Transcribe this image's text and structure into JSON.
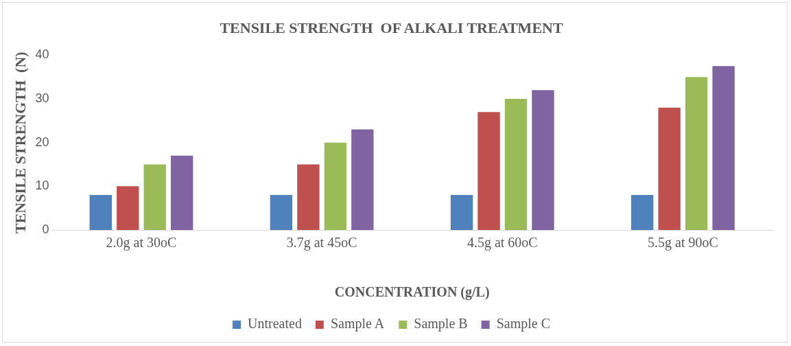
{
  "chart_data": {
    "type": "bar",
    "title": "TENSILE STRENGTH  OF ALKALI TREATMENT",
    "xlabel": "CONCENTRATION (g/L)",
    "ylabel": "TENSILE STRENGTH  (N)",
    "categories": [
      "2.0g at 30oC",
      "3.7g at 45oC",
      "4.5g at 60oC",
      "5.5g at 90oC"
    ],
    "series": [
      {
        "name": "Untreated",
        "color": "#4f81bd",
        "values": [
          8,
          8,
          8,
          8
        ]
      },
      {
        "name": "Sample A",
        "color": "#c0504d",
        "values": [
          10,
          15,
          27,
          28
        ]
      },
      {
        "name": "Sample B",
        "color": "#9bbb59",
        "values": [
          15,
          20,
          30,
          35
        ]
      },
      {
        "name": "Sample C",
        "color": "#8064a2",
        "values": [
          17,
          23,
          32,
          37.5
        ]
      }
    ],
    "ylim": [
      0,
      40
    ],
    "yticks": [
      0,
      10,
      20,
      30,
      40
    ],
    "grid": false,
    "legend": "bottom"
  }
}
